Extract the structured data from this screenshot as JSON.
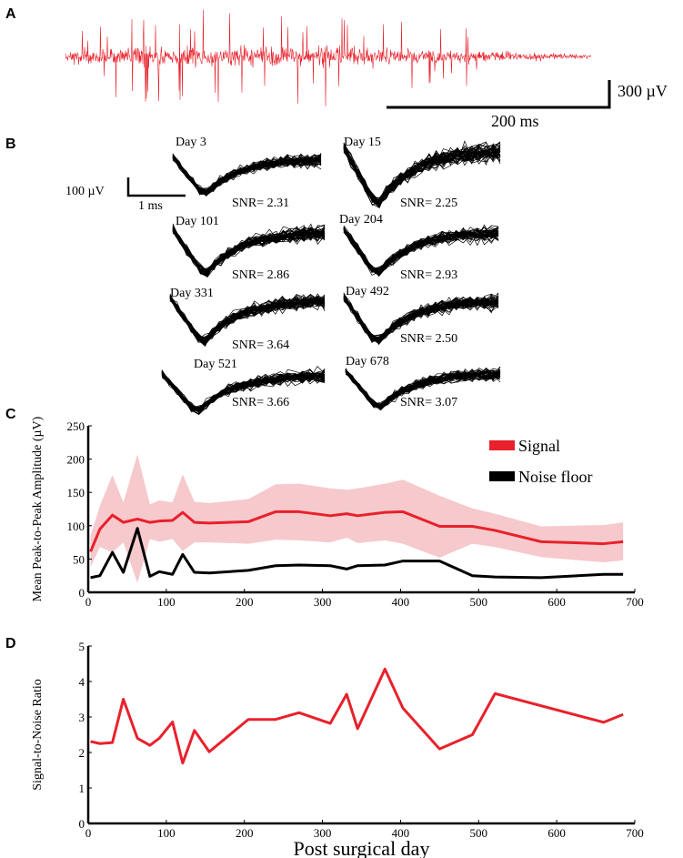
{
  "panel_labels": [
    "A",
    "B",
    "C",
    "D"
  ],
  "panel_a": {
    "trace_color": "#e8212b",
    "scale_voltage_label": "300 µV",
    "scale_time_label": "200 ms"
  },
  "panel_b": {
    "scale_voltage_label": "100 µV",
    "scale_time_label": "1 ms",
    "waveforms": [
      {
        "day_label": "Day 3",
        "snr_label": "SNR= 2.31",
        "snr": 2.31
      },
      {
        "day_label": "Day 15",
        "snr_label": "SNR= 2.25",
        "snr": 2.25
      },
      {
        "day_label": "Day 101",
        "snr_label": "SNR= 2.86",
        "snr": 2.86
      },
      {
        "day_label": "Day 204",
        "snr_label": "SNR= 2.93",
        "snr": 2.93
      },
      {
        "day_label": "Day 331",
        "snr_label": "SNR= 3.64",
        "snr": 3.64
      },
      {
        "day_label": "Day 492",
        "snr_label": "SNR= 2.50",
        "snr": 2.5
      },
      {
        "day_label": "Day 521",
        "snr_label": "SNR= 3.66",
        "snr": 3.66
      },
      {
        "day_label": "Day 678",
        "snr_label": "SNR= 3.07",
        "snr": 3.07
      }
    ]
  },
  "chart_data": [
    {
      "type": "line",
      "panel": "C",
      "xlabel": "",
      "ylabel": "Mean Peak-to-Peak Amplitude (µV)",
      "xlim": [
        0,
        700
      ],
      "ylim": [
        0,
        250
      ],
      "xticks": [
        0,
        100,
        200,
        300,
        400,
        500,
        600,
        700
      ],
      "yticks": [
        0,
        50,
        100,
        150,
        200,
        250
      ],
      "legend_position": "top-right",
      "x": [
        3,
        15,
        31,
        45,
        63,
        79,
        91,
        108,
        121,
        136,
        155,
        205,
        240,
        270,
        310,
        331,
        345,
        380,
        403,
        450,
        492,
        521,
        580,
        660,
        685
      ],
      "series": [
        {
          "name": "Signal",
          "color": "#e8212b",
          "values": [
            61,
            95,
            116,
            105,
            110,
            105,
            107,
            108,
            120,
            105,
            104,
            106,
            121,
            121,
            115,
            118,
            115,
            120,
            121,
            99,
            99,
            93,
            76,
            73,
            76
          ],
          "band_lower": [
            38,
            68,
            60,
            75,
            14,
            80,
            76,
            80,
            62,
            75,
            75,
            73,
            79,
            78,
            75,
            82,
            74,
            78,
            73,
            52,
            73,
            68,
            53,
            45,
            48
          ],
          "band_upper": [
            85,
            130,
            176,
            135,
            207,
            132,
            138,
            135,
            177,
            136,
            134,
            140,
            162,
            163,
            156,
            154,
            156,
            163,
            169,
            145,
            126,
            118,
            99,
            101,
            105
          ],
          "band_color": "#f6c9cc"
        },
        {
          "name": "Noise floor",
          "color": "#000000",
          "values": [
            22,
            25,
            60,
            30,
            96,
            24,
            31,
            27,
            57,
            30,
            29,
            33,
            40,
            41,
            40,
            35,
            40,
            41,
            47,
            47,
            25,
            23,
            22,
            27,
            27
          ]
        }
      ]
    },
    {
      "type": "line",
      "panel": "D",
      "xlabel": "Post surgical day",
      "ylabel": "Signal-to-Noise Ratio",
      "xlim": [
        0,
        700
      ],
      "ylim": [
        0,
        5
      ],
      "xticks": [
        0,
        100,
        200,
        300,
        400,
        500,
        600,
        700
      ],
      "yticks": [
        0,
        1,
        2,
        3,
        4,
        5
      ],
      "x": [
        3,
        15,
        31,
        45,
        63,
        79,
        91,
        108,
        121,
        136,
        155,
        205,
        240,
        270,
        310,
        331,
        345,
        380,
        403,
        450,
        492,
        521,
        660,
        685
      ],
      "series": [
        {
          "name": "SNR",
          "color": "#e8212b",
          "values": [
            2.31,
            2.25,
            2.28,
            3.5,
            2.4,
            2.2,
            2.4,
            2.86,
            1.7,
            2.62,
            2.02,
            2.93,
            2.93,
            3.12,
            2.82,
            3.64,
            2.67,
            4.35,
            3.25,
            2.1,
            2.5,
            3.66,
            2.85,
            3.07
          ]
        }
      ]
    }
  ]
}
